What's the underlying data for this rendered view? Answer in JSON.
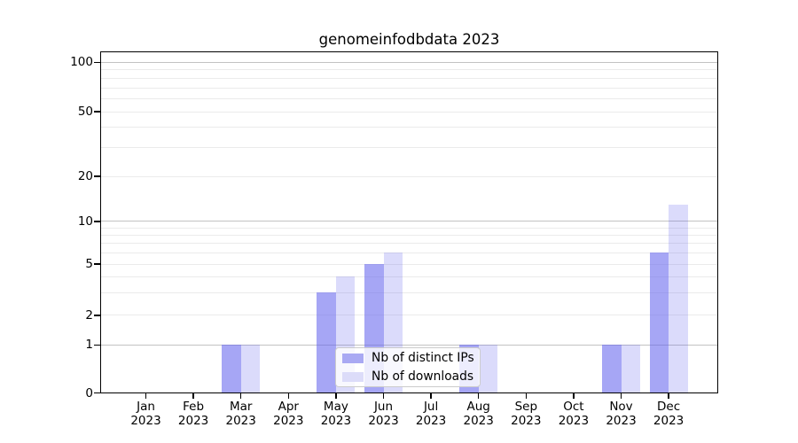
{
  "chart_data": {
    "type": "bar",
    "title": "genomeinfodbdata 2023",
    "categories": [
      "Jan 2023",
      "Feb 2023",
      "Mar 2023",
      "Apr 2023",
      "May 2023",
      "Jun 2023",
      "Jul 2023",
      "Aug 2023",
      "Sep 2023",
      "Oct 2023",
      "Nov 2023",
      "Dec 2023"
    ],
    "series": [
      {
        "name": "Nb of distinct IPs",
        "values": [
          0,
          0,
          1,
          0,
          3,
          5,
          0,
          1,
          0,
          0,
          1,
          6
        ],
        "color": "rgba(102,102,238,0.58)"
      },
      {
        "name": "Nb of downloads",
        "values": [
          0,
          0,
          1,
          0,
          4,
          6,
          0,
          1,
          0,
          0,
          1,
          13
        ],
        "color": "rgba(102,102,238,0.235)"
      }
    ],
    "yticks": [
      0,
      1,
      2,
      5,
      10,
      20,
      50,
      100
    ],
    "minor_gridlines": [
      3,
      4,
      6,
      7,
      8,
      9,
      30,
      40,
      60,
      70,
      80,
      90
    ],
    "ylim": [
      0,
      117
    ],
    "xlabel": "",
    "ylabel": "",
    "grid": "horizontal",
    "legend_position": "lower center",
    "colors": {
      "bar_distinct_ips": "#a9a9f3",
      "bar_downloads": "#dcdcf9",
      "major_gridline": "#c2c2c2",
      "minor_gridline": "#ebebeb",
      "axis": "#000000"
    }
  }
}
